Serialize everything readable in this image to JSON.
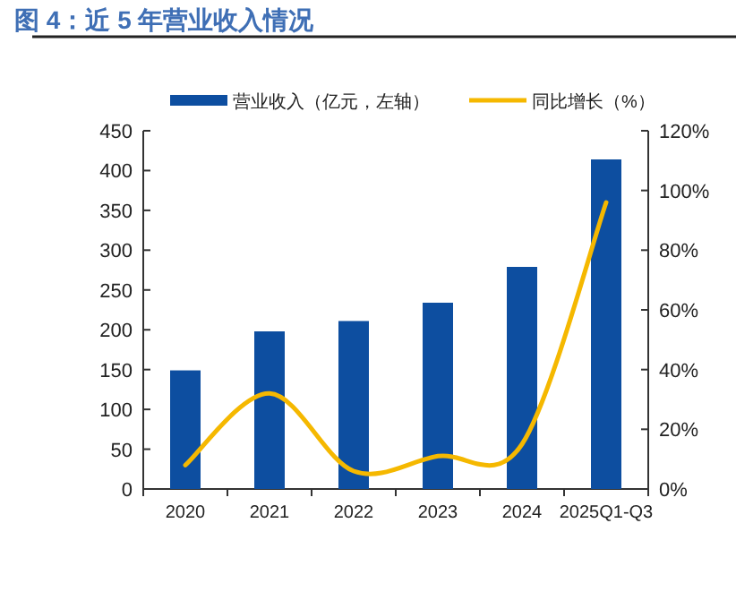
{
  "chart_data": {
    "type": "bar",
    "title": "图 4：近 5 年营业收入情况",
    "categories": [
      "2020",
      "2021",
      "2022",
      "2023",
      "2024",
      "2025Q1-Q3"
    ],
    "series": [
      {
        "name": "营业收入（亿元，左轴）",
        "color": "#0d4ea0",
        "values": [
          149,
          198,
          211,
          234,
          279,
          414
        ]
      },
      {
        "name": "同比增长（%）",
        "type": "line",
        "axis": "y2",
        "color": "#f5b800",
        "values": [
          8,
          32,
          6,
          11,
          15,
          96
        ]
      }
    ],
    "ylim": [
      0,
      450
    ],
    "yticks": [
      0,
      50,
      100,
      150,
      200,
      250,
      300,
      350,
      400,
      450
    ],
    "y2lim": [
      0,
      120
    ],
    "y2ticks": [
      {
        "value": 0,
        "label": "0%"
      },
      {
        "value": 20,
        "label": "20%"
      },
      {
        "value": 40,
        "label": "40%"
      },
      {
        "value": 60,
        "label": "60%"
      },
      {
        "value": 80,
        "label": "80%"
      },
      {
        "value": 100,
        "label": "100%"
      },
      {
        "value": 120,
        "label": "120%"
      }
    ],
    "legend": "top"
  }
}
